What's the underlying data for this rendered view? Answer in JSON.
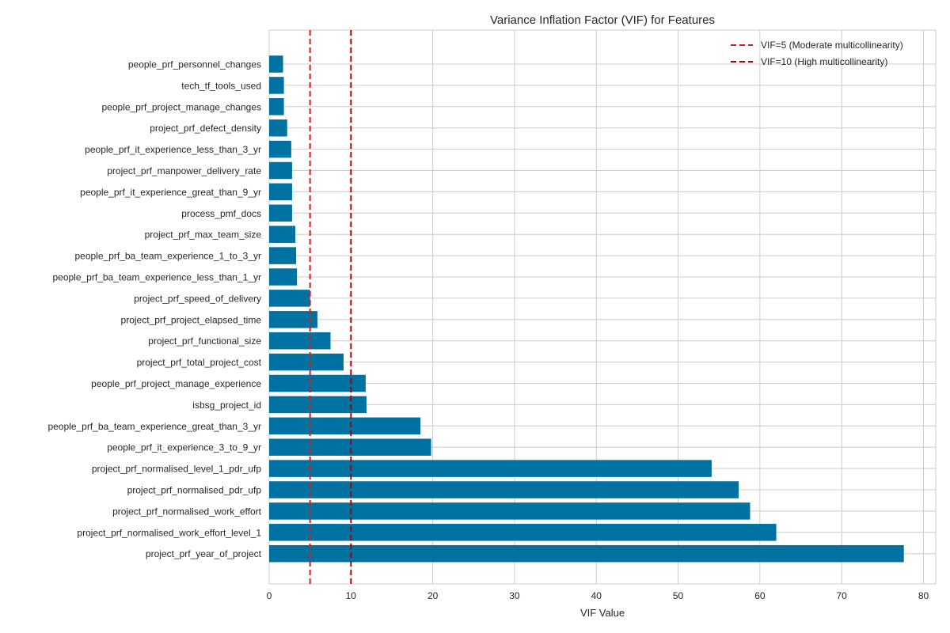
{
  "chart_data": {
    "type": "bar",
    "orientation": "horizontal",
    "title": "Variance Inflation Factor (VIF) for Features",
    "xlabel": "VIF Value",
    "ylabel": "",
    "xlim": [
      0,
      81.5
    ],
    "xticks": [
      0,
      10,
      20,
      30,
      40,
      50,
      60,
      70,
      80
    ],
    "grid": true,
    "bar_color": "#0072a2",
    "categories": [
      "people_prf_personnel_changes",
      "tech_tf_tools_used",
      "people_prf_project_manage_changes",
      "project_prf_defect_density",
      "people_prf_it_experience_less_than_3_yr",
      "project_prf_manpower_delivery_rate",
      "people_prf_it_experience_great_than_9_yr",
      "process_pmf_docs",
      "project_prf_max_team_size",
      "people_prf_ba_team_experience_1_to_3_yr",
      "people_prf_ba_team_experience_less_than_1_yr",
      "project_prf_speed_of_delivery",
      "project_prf_project_elapsed_time",
      "project_prf_functional_size",
      "project_prf_total_project_cost",
      "people_prf_project_manage_experience",
      "isbsg_project_id",
      "people_prf_ba_team_experience_great_than_3_yr",
      "people_prf_it_experience_3_to_9_yr",
      "project_prf_normalised_level_1_pdr_ufp",
      "project_prf_normalised_pdr_ufp",
      "project_prf_normalised_work_effort",
      "project_prf_normalised_work_effort_level_1",
      "project_prf_year_of_project"
    ],
    "values": [
      1.7,
      1.8,
      1.8,
      2.2,
      2.7,
      2.8,
      2.8,
      2.8,
      3.2,
      3.3,
      3.4,
      5.0,
      5.9,
      7.5,
      9.1,
      11.8,
      11.9,
      18.5,
      19.8,
      54.1,
      57.4,
      58.8,
      62.0,
      77.6
    ],
    "reference_lines": [
      {
        "value": 5,
        "label": "VIF=5 (Moderate multicollinearity)",
        "color": "#d81e16"
      },
      {
        "value": 10,
        "label": "VIF=10 (High multicollinearity)",
        "color": "#a80000"
      }
    ],
    "legend_position": "top-right"
  }
}
